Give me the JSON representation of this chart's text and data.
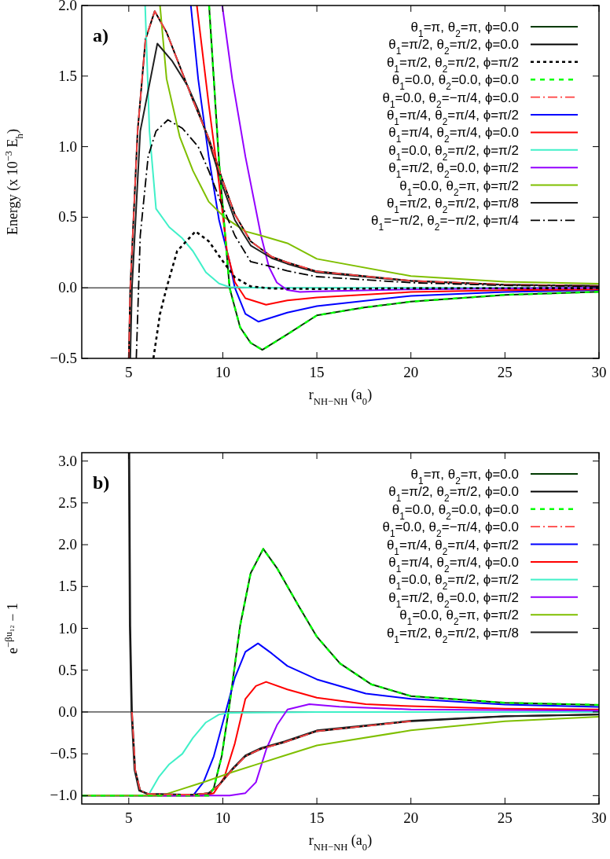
{
  "chart_data": [
    {
      "type": "line",
      "title": "a)",
      "xlabel": "r$_{NH−NH}$ (a$_{0}$)",
      "ylabel": "Energy (x 10$^{−3}$ E$_{h}$)",
      "xlim": [
        2.5,
        30
      ],
      "xticks": [
        5,
        10,
        15,
        20,
        25,
        30
      ],
      "ylim": [
        -0.5,
        2.0
      ],
      "yticks": [
        {
          "value": -0.5,
          "label": "−0.5"
        },
        {
          "value": 0,
          "label": "0.0"
        },
        {
          "value": 0.5,
          "label": "0.5"
        },
        {
          "value": 1,
          "label": "1.0"
        },
        {
          "value": 1.5,
          "label": "1.5"
        },
        {
          "value": 2,
          "label": "2.0"
        }
      ],
      "ref_lines": [
        {
          "axis": "y",
          "value": 0,
          "color": "#000000"
        }
      ],
      "legend": "top right",
      "series": [
        {
          "name": "θ$_{1}$=π, θ$_{2}$=π, ϕ=0.0",
          "color": "#003a00",
          "line_style": "solid",
          "x": [
            9.27,
            9.52,
            9.8,
            10.08,
            10.36,
            10.92,
            11.48,
            12.1,
            13.43,
            15,
            17.5,
            20,
            25,
            30
          ],
          "values": [
            2.0,
            1.48,
            0.89,
            0.44,
            0,
            -0.28,
            -0.39,
            -0.44,
            -0.33,
            -0.195,
            -0.14,
            -0.098,
            -0.05,
            -0.028
          ]
        },
        {
          "name": "θ$_{1}$=π/2, θ$_{2}$=π/2, ϕ=0.0",
          "color": "#000000",
          "line_style": "solid",
          "x": [
            5.0,
            5.08,
            5.47,
            5.89,
            6.38,
            7.01,
            7.71,
            8.41,
            9.25,
            9.94,
            10.64,
            11.48,
            12.6,
            13.43,
            15,
            20,
            25,
            30
          ],
          "values": [
            -0.5,
            0,
            1.11,
            1.76,
            1.96,
            1.81,
            1.57,
            1.33,
            1.06,
            0.78,
            0.52,
            0.33,
            0.22,
            0.18,
            0.116,
            0.05,
            0.022,
            0.013
          ]
        },
        {
          "name": "θ$_{1}$=π/2, θ$_{2}$=π/2, ϕ=π/2",
          "color": "#000000",
          "line_style": "dotted",
          "x": [
            6.31,
            6.66,
            7.01,
            7.57,
            8.55,
            9.25,
            9.94,
            10.64,
            11.48,
            12.6,
            15,
            20,
            30
          ],
          "values": [
            -0.5,
            -0.185,
            0,
            0.26,
            0.4,
            0.33,
            0.2,
            0.074,
            0.01,
            -0.005,
            -0.008,
            -0.004,
            -0.002
          ]
        },
        {
          "name": "θ$_{1}$=0.0, θ$_{2}$=0.0, ϕ=0.0",
          "color": "#00ff00",
          "line_style": "dashed",
          "x": [
            9.27,
            9.52,
            9.8,
            10.08,
            10.36,
            10.92,
            11.48,
            12.1,
            13.43,
            15,
            17.5,
            20,
            25,
            30
          ],
          "values": [
            2.0,
            1.48,
            0.89,
            0.44,
            0,
            -0.28,
            -0.39,
            -0.44,
            -0.33,
            -0.195,
            -0.14,
            -0.098,
            -0.05,
            -0.028
          ]
        },
        {
          "name": "θ$_{1}$=0.0, θ$_{2}$=−π/4, ϕ=0.0",
          "color": "#ff4040",
          "line_style": "dashdot",
          "x": [
            5.0,
            5.08,
            5.47,
            5.89,
            6.38,
            7.01,
            7.71,
            8.41,
            9.25,
            9.94,
            10.64,
            11.48,
            12.6,
            13.43,
            15,
            20,
            25,
            30
          ],
          "values": [
            -0.5,
            0,
            1.11,
            1.76,
            1.96,
            1.81,
            1.57,
            1.33,
            1.06,
            0.78,
            0.52,
            0.33,
            0.22,
            0.18,
            0.116,
            0.05,
            0.022,
            0.013
          ]
        },
        {
          "name": "θ$_{1}$=π/4, θ$_{2}$=π/4, ϕ=π/2",
          "color": "#0000ff",
          "line_style": "solid",
          "x": [
            8.3,
            8.69,
            9.25,
            9.8,
            10.36,
            10.64,
            11.2,
            11.9,
            13.43,
            15,
            20,
            25,
            30
          ],
          "values": [
            2.0,
            1.48,
            0.93,
            0.48,
            0.185,
            0,
            -0.185,
            -0.24,
            -0.176,
            -0.13,
            -0.057,
            -0.029,
            -0.016
          ]
        },
        {
          "name": "θ$_{1}$=π/4, θ$_{2}$=π/4, ϕ=0.0",
          "color": "#ff0000",
          "line_style": "solid",
          "x": [
            8.62,
            9.25,
            9.8,
            10.22,
            10.64,
            11.2,
            12.3,
            13.43,
            15,
            20,
            25,
            30
          ],
          "values": [
            2.0,
            1.3,
            0.74,
            0.26,
            0.04,
            -0.074,
            -0.12,
            -0.089,
            -0.068,
            -0.03,
            -0.017,
            -0.011
          ]
        },
        {
          "name": "θ$_{1}$=0.0, θ$_{2}$=π/2, ϕ=π/2",
          "color": "#40f0c8",
          "line_style": "solid",
          "x": [
            5.87,
            6.1,
            6.45,
            7.15,
            7.85,
            8.41,
            9.1,
            9.8,
            10.36,
            12,
            20,
            30
          ],
          "values": [
            2.0,
            1.11,
            0.56,
            0.43,
            0.35,
            0.26,
            0.11,
            0.03,
            0.005,
            0,
            0,
            0
          ]
        },
        {
          "name": "θ$_{1}$=π/2, θ$_{2}$=0.0, ϕ=π/2",
          "color": "#9400ff",
          "line_style": "solid",
          "x": [
            9.97,
            10.5,
            11.2,
            12.03,
            12.45,
            12.87,
            13.43,
            14.1,
            15,
            20,
            25,
            30
          ],
          "values": [
            2.0,
            1.48,
            0.93,
            0.37,
            0.149,
            0.037,
            -0.016,
            -0.03,
            -0.026,
            -0.011,
            -0.004,
            0
          ]
        },
        {
          "name": "θ$_{1}$=0.0, θ$_{2}$=π, ϕ=π/2",
          "color": "#7fbf00",
          "line_style": "solid",
          "x": [
            6.66,
            7.01,
            7.71,
            8.41,
            9.25,
            10.08,
            11.2,
            12.04,
            13.43,
            15,
            20,
            25,
            30
          ],
          "values": [
            2.0,
            1.48,
            1.07,
            0.83,
            0.61,
            0.5,
            0.4,
            0.37,
            0.316,
            0.205,
            0.083,
            0.043,
            0.029
          ]
        },
        {
          "name": "θ$_{1}$=π/2, θ$_{2}$=π/2, ϕ=π/8",
          "color": "#202020",
          "line_style": "solid",
          "x": [
            5.08,
            5.17,
            5.61,
            6.52,
            7.29,
            8.13,
            8.69,
            9.25,
            9.94,
            10.64,
            11.48,
            12.6,
            13.43,
            15,
            20,
            25,
            30
          ],
          "values": [
            -0.5,
            0,
            1.11,
            1.73,
            1.61,
            1.43,
            1.26,
            1.04,
            0.74,
            0.48,
            0.3,
            0.21,
            0.17,
            0.11,
            0.048,
            0.021,
            0.012
          ]
        },
        {
          "name": "θ$_{1}$=−π/2, θ$_{2}$=−π/2, ϕ=π/4",
          "color": "#000000",
          "line_style": "dashdot",
          "x": [
            5.4,
            5.61,
            6.03,
            6.45,
            7.08,
            7.85,
            8.69,
            9.25,
            9.94,
            10.64,
            11.48,
            12.6,
            13.43,
            15,
            20,
            25,
            30
          ],
          "values": [
            -0.5,
            0.37,
            0.93,
            1.11,
            1.19,
            1.13,
            1.0,
            0.83,
            0.59,
            0.37,
            0.185,
            0.15,
            0.12,
            0.079,
            0.036,
            0.017,
            0.01
          ]
        }
      ]
    },
    {
      "type": "line",
      "title": "b)",
      "xlabel": "r$_{NH−NH}$ (a$_{0}$)",
      "ylabel": "e$^{−βu₁₂}$ − 1",
      "xlim": [
        2.5,
        30
      ],
      "xticks": [
        5,
        10,
        15,
        20,
        25,
        30
      ],
      "ylim": [
        -1.1,
        3.1
      ],
      "yticks": [
        {
          "value": -1,
          "label": "−1.0"
        },
        {
          "value": -0.5,
          "label": "−0.5"
        },
        {
          "value": 0,
          "label": "0.0"
        },
        {
          "value": 0.5,
          "label": "0.5"
        },
        {
          "value": 1,
          "label": "1.0"
        },
        {
          "value": 1.5,
          "label": "1.5"
        },
        {
          "value": 2,
          "label": "2.0"
        },
        {
          "value": 2.5,
          "label": "2.5"
        },
        {
          "value": 3,
          "label": "3.0"
        }
      ],
      "ref_lines": [
        {
          "axis": "y",
          "value": 0,
          "color": "#000000"
        }
      ],
      "legend": "top right",
      "series": [
        {
          "name": "θ$_{1}$=π, θ$_{2}$=π, ϕ=0.0",
          "color": "#003a00",
          "line_style": "solid",
          "x": [
            2.5,
            9.25,
            9.52,
            9.94,
            10.36,
            10.92,
            11.48,
            12.15,
            12.88,
            14.0,
            15,
            16.23,
            17.9,
            20,
            25,
            30
          ],
          "values": [
            -1.0,
            -1.0,
            -0.91,
            -0.53,
            0.094,
            1.03,
            1.66,
            1.95,
            1.72,
            1.28,
            0.9,
            0.58,
            0.33,
            0.19,
            0.11,
            0.084
          ]
        },
        {
          "name": "θ$_{1}$=π/2, θ$_{2}$=π/2, ϕ=0.0",
          "color": "#000000",
          "line_style": "solid",
          "x": [
            5.03,
            5.08,
            5.17,
            5.34,
            5.61,
            6.03,
            8.41,
            9.25,
            9.8,
            10.5,
            11.2,
            12.04,
            13.3,
            15,
            20,
            25,
            30
          ],
          "values": [
            3.1,
            1.03,
            0,
            -0.69,
            -0.94,
            -0.98,
            -0.99,
            -0.97,
            -0.875,
            -0.69,
            -0.53,
            -0.44,
            -0.36,
            -0.23,
            -0.11,
            -0.053,
            -0.031
          ]
        },
        {
          "name": "θ$_{1}$=0.0, θ$_{2}$=0.0, ϕ=0.0",
          "color": "#00ff00",
          "line_style": "dashed",
          "x": [
            2.5,
            9.25,
            9.52,
            9.94,
            10.36,
            10.92,
            11.48,
            12.15,
            12.88,
            14.0,
            15,
            16.23,
            17.9,
            20,
            25,
            30
          ],
          "values": [
            -1.0,
            -1.0,
            -0.91,
            -0.53,
            0.094,
            1.03,
            1.66,
            1.95,
            1.72,
            1.28,
            0.9,
            0.58,
            0.33,
            0.19,
            0.11,
            0.084
          ]
        },
        {
          "name": "θ$_{1}$=0.0, θ$_{2}$=−π/4, ϕ=0.0",
          "color": "#ff4040",
          "line_style": "dashdot",
          "x": [
            5.17,
            5.34,
            5.61,
            6.03,
            8.41,
            9.25,
            9.8,
            10.5,
            11.2,
            12.04,
            13.3,
            15,
            20
          ],
          "values": [
            0,
            -0.69,
            -0.94,
            -0.98,
            -0.99,
            -0.97,
            -0.88,
            -0.69,
            -0.53,
            -0.44,
            -0.36,
            -0.23,
            -0.11
          ]
        },
        {
          "name": "θ$_{1}$=π/4, θ$_{2}$=π/4, ϕ=π/2",
          "color": "#0000ff",
          "line_style": "solid",
          "x": [
            2.5,
            8.41,
            8.97,
            9.52,
            10.08,
            10.64,
            11.2,
            11.87,
            12.6,
            13.43,
            15,
            17.6,
            20,
            25,
            30
          ],
          "values": [
            -1.0,
            -1.0,
            -0.84,
            -0.53,
            -0.06,
            0.41,
            0.72,
            0.82,
            0.7,
            0.55,
            0.39,
            0.22,
            0.156,
            0.088,
            0.06
          ]
        },
        {
          "name": "θ$_{1}$=π/4, θ$_{2}$=π/4, ϕ=0.0",
          "color": "#ff0000",
          "line_style": "solid",
          "x": [
            2.5,
            8.97,
            9.52,
            10.08,
            10.64,
            11.2,
            11.76,
            12.3,
            13.43,
            15,
            17.6,
            20,
            25,
            30
          ],
          "values": [
            -1.0,
            -1.0,
            -0.97,
            -0.78,
            -0.375,
            0.156,
            0.31,
            0.36,
            0.27,
            0.17,
            0.094,
            0.069,
            0.04,
            0.031
          ]
        },
        {
          "name": "θ$_{1}$=0.0, θ$_{2}$=π/2, ϕ=π/2",
          "color": "#40f0c8",
          "line_style": "solid",
          "x": [
            2.5,
            6.03,
            6.59,
            7.15,
            7.85,
            8.41,
            9.1,
            9.8,
            10.36,
            15,
            30
          ],
          "values": [
            -1.0,
            -1.0,
            -0.78,
            -0.625,
            -0.5,
            -0.31,
            -0.125,
            -0.03,
            -0.01,
            0,
            0
          ]
        },
        {
          "name": "θ$_{1}$=π/2, θ$_{2}$=0.0, ϕ=π/2",
          "color": "#9400ff",
          "line_style": "solid",
          "x": [
            2.5,
            10.36,
            11.2,
            11.76,
            12.32,
            12.88,
            13.44,
            14.6,
            16.2,
            20,
            25,
            30
          ],
          "values": [
            -1.0,
            -1.0,
            -0.97,
            -0.84,
            -0.44,
            -0.156,
            0.03,
            0.094,
            0.063,
            0.031,
            0.022,
            0.016
          ]
        },
        {
          "name": "θ$_{1}$=0.0, θ$_{2}$=π, ϕ=π/2",
          "color": "#7fbf00",
          "line_style": "solid",
          "x": [
            2.5,
            6.73,
            7.71,
            9.1,
            10.5,
            11.9,
            13.3,
            15,
            20,
            25,
            30
          ],
          "values": [
            -1.0,
            -1.0,
            -0.93,
            -0.83,
            -0.72,
            -0.62,
            -0.52,
            -0.4,
            -0.22,
            -0.11,
            -0.056
          ]
        },
        {
          "name": "θ$_{1}$=π/2, θ$_{2}$=π/2, ϕ=π/8",
          "color": "#202020",
          "line_style": "solid",
          "x": [
            5.0,
            5.05,
            5.14,
            5.3,
            5.55,
            6.0,
            8.41,
            9.25,
            9.8,
            10.5,
            11.2,
            12.04,
            13.3,
            15,
            20,
            25,
            30
          ],
          "values": [
            3.1,
            1.03,
            0,
            -0.69,
            -0.94,
            -0.98,
            -0.99,
            -0.97,
            -0.87,
            -0.68,
            -0.52,
            -0.43,
            -0.35,
            -0.22,
            -0.105,
            -0.05,
            -0.03
          ]
        }
      ]
    }
  ]
}
